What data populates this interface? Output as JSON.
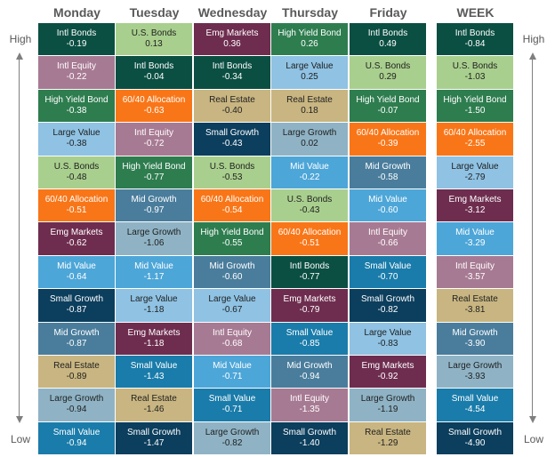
{
  "side_labels": {
    "high": "High",
    "low": "Low"
  },
  "colors": {
    "Intl Bonds": "#0b4f43",
    "U.S. Bonds": "#a9cf8e",
    "Emg Markets": "#6e2d4f",
    "High Yield Bond": "#2e7d4f",
    "Intl Equity": "#a77a93",
    "Large Value": "#8fc2e3",
    "Real Estate": "#c8b581",
    "60/40 Allocation": "#f97618",
    "Small Growth": "#0c3e5d",
    "Large Growth": "#8fb3c5",
    "Mid Value": "#4da6d8",
    "Mid Growth": "#4a7d9c",
    "Small Value": "#1a7caa"
  },
  "light_text_names": [
    "U.S. Bonds",
    "Large Value",
    "Real Estate",
    "Large Growth"
  ],
  "chart_data": {
    "type": "table",
    "columns": [
      {
        "header": "Monday",
        "cells": [
          {
            "name": "Intl Bonds",
            "value": "-0.19"
          },
          {
            "name": "Intl Equity",
            "value": "-0.22"
          },
          {
            "name": "High Yield Bond",
            "value": "-0.38"
          },
          {
            "name": "Large Value",
            "value": "-0.38"
          },
          {
            "name": "U.S. Bonds",
            "value": "-0.48"
          },
          {
            "name": "60/40 Allocation",
            "value": "-0.51"
          },
          {
            "name": "Emg Markets",
            "value": "-0.62"
          },
          {
            "name": "Mid Value",
            "value": "-0.64"
          },
          {
            "name": "Small Growth",
            "value": "-0.87"
          },
          {
            "name": "Mid Growth",
            "value": "-0.87"
          },
          {
            "name": "Real Estate",
            "value": "-0.89"
          },
          {
            "name": "Large Growth",
            "value": "-0.94"
          },
          {
            "name": "Small Value",
            "value": "-0.94"
          }
        ]
      },
      {
        "header": "Tuesday",
        "cells": [
          {
            "name": "U.S. Bonds",
            "value": "0.13"
          },
          {
            "name": "Intl Bonds",
            "value": "-0.04"
          },
          {
            "name": "60/40 Allocation",
            "value": "-0.63"
          },
          {
            "name": "Intl Equity",
            "value": "-0.72"
          },
          {
            "name": "High Yield Bond",
            "value": "-0.77"
          },
          {
            "name": "Mid Growth",
            "value": "-0.97"
          },
          {
            "name": "Large Growth",
            "value": "-1.06"
          },
          {
            "name": "Mid Value",
            "value": "-1.17"
          },
          {
            "name": "Large Value",
            "value": "-1.18"
          },
          {
            "name": "Emg Markets",
            "value": "-1.18"
          },
          {
            "name": "Small Value",
            "value": "-1.43"
          },
          {
            "name": "Real Estate",
            "value": "-1.46"
          },
          {
            "name": "Small Growth",
            "value": "-1.47"
          }
        ]
      },
      {
        "header": "Wednesday",
        "cells": [
          {
            "name": "Emg Markets",
            "value": "0.36"
          },
          {
            "name": "Intl Bonds",
            "value": "-0.34"
          },
          {
            "name": "Real Estate",
            "value": "-0.40"
          },
          {
            "name": "Small Growth",
            "value": "-0.43"
          },
          {
            "name": "U.S. Bonds",
            "value": "-0.53"
          },
          {
            "name": "60/40 Allocation",
            "value": "-0.54"
          },
          {
            "name": "High Yield Bond",
            "value": "-0.55"
          },
          {
            "name": "Mid Growth",
            "value": "-0.60"
          },
          {
            "name": "Large Value",
            "value": "-0.67"
          },
          {
            "name": "Intl Equity",
            "value": "-0.68"
          },
          {
            "name": "Mid Value",
            "value": "-0.71"
          },
          {
            "name": "Small Value",
            "value": "-0.71"
          },
          {
            "name": "Large Growth",
            "value": "-0.82"
          }
        ]
      },
      {
        "header": "Thursday",
        "cells": [
          {
            "name": "High Yield Bond",
            "value": "0.26"
          },
          {
            "name": "Large Value",
            "value": "0.25"
          },
          {
            "name": "Real Estate",
            "value": "0.18"
          },
          {
            "name": "Large Growth",
            "value": "0.02"
          },
          {
            "name": "Mid Value",
            "value": "-0.22"
          },
          {
            "name": "U.S. Bonds",
            "value": "-0.43"
          },
          {
            "name": "60/40 Allocation",
            "value": "-0.51"
          },
          {
            "name": "Intl Bonds",
            "value": "-0.77"
          },
          {
            "name": "Emg Markets",
            "value": "-0.79"
          },
          {
            "name": "Small Value",
            "value": "-0.85"
          },
          {
            "name": "Mid Growth",
            "value": "-0.94"
          },
          {
            "name": "Intl Equity",
            "value": "-1.35"
          },
          {
            "name": "Small Growth",
            "value": "-1.40"
          }
        ]
      },
      {
        "header": "Friday",
        "cells": [
          {
            "name": "Intl Bonds",
            "value": "0.49"
          },
          {
            "name": "U.S. Bonds",
            "value": "0.29"
          },
          {
            "name": "High Yield Bond",
            "value": "-0.07"
          },
          {
            "name": "60/40 Allocation",
            "value": "-0.39"
          },
          {
            "name": "Mid Growth",
            "value": "-0.58"
          },
          {
            "name": "Mid Value",
            "value": "-0.60"
          },
          {
            "name": "Intl Equity",
            "value": "-0.66"
          },
          {
            "name": "Small Value",
            "value": "-0.70"
          },
          {
            "name": "Small Growth",
            "value": "-0.82"
          },
          {
            "name": "Large Value",
            "value": "-0.83"
          },
          {
            "name": "Emg Markets",
            "value": "-0.92"
          },
          {
            "name": "Large Growth",
            "value": "-1.19"
          },
          {
            "name": "Real Estate",
            "value": "-1.29"
          }
        ]
      },
      {
        "header": "WEEK",
        "cells": [
          {
            "name": "Intl Bonds",
            "value": "-0.84"
          },
          {
            "name": "U.S. Bonds",
            "value": "-1.03"
          },
          {
            "name": "High Yield Bond",
            "value": "-1.50"
          },
          {
            "name": "60/40 Allocation",
            "value": "-2.55"
          },
          {
            "name": "Large Value",
            "value": "-2.79"
          },
          {
            "name": "Emg Markets",
            "value": "-3.12"
          },
          {
            "name": "Mid Value",
            "value": "-3.29"
          },
          {
            "name": "Intl Equity",
            "value": "-3.57"
          },
          {
            "name": "Real Estate",
            "value": "-3.81"
          },
          {
            "name": "Mid Growth",
            "value": "-3.90"
          },
          {
            "name": "Large Growth",
            "value": "-3.93"
          },
          {
            "name": "Small Value",
            "value": "-4.54"
          },
          {
            "name": "Small Growth",
            "value": "-4.90"
          }
        ]
      }
    ]
  }
}
